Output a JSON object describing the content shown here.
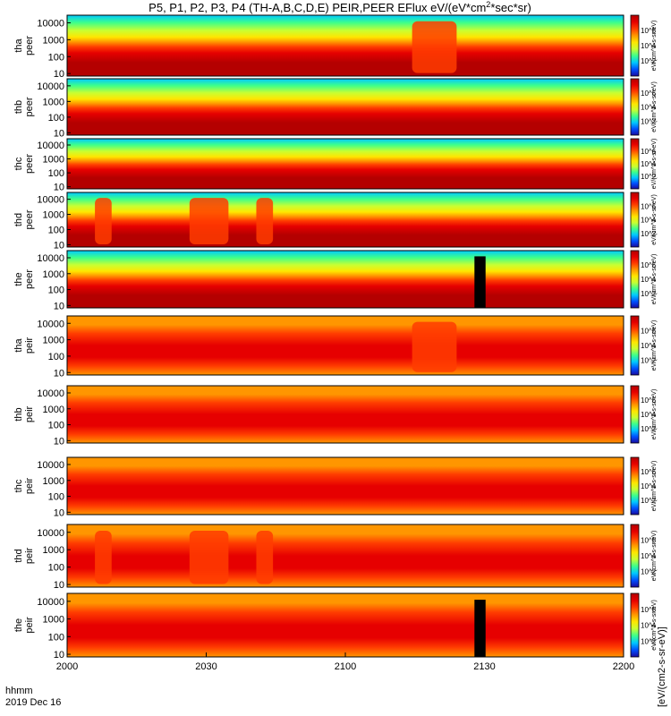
{
  "chart_data": {
    "type": "heatmap",
    "title": "P5, P1, P2, P3, P4 (TH-A,B,C,D,E) PEIR,PEER EFlux eV/(eV*cm",
    "title_sup": "2",
    "title_end": "*sec*sr)",
    "time_label": "hhmm",
    "date_label": "2019 Dec 16",
    "x_ticks": [
      "2000",
      "2030",
      "2100",
      "2130",
      "2200"
    ],
    "y_ticks": [
      "10",
      "100",
      "1000",
      "10000"
    ],
    "colorbar_label": "[eV/(cm2-s-sr-eV)]",
    "colorbar_units_repeated": "eV/(cm^2-s-sr-eV)",
    "panels": [
      {
        "probe": "tha",
        "species": "peer",
        "low_band": true,
        "bursts": [
          [
            0.62,
            0.7
          ]
        ],
        "black_blocks": []
      },
      {
        "probe": "thb",
        "species": "peer",
        "low_band": true,
        "bursts": [],
        "black_blocks": []
      },
      {
        "probe": "thc",
        "species": "peer",
        "low_band": true,
        "bursts": [],
        "black_blocks": []
      },
      {
        "probe": "thd",
        "species": "peer",
        "low_band": true,
        "bursts": [
          [
            0.05,
            0.08
          ],
          [
            0.22,
            0.29
          ],
          [
            0.34,
            0.37
          ]
        ],
        "black_blocks": []
      },
      {
        "probe": "the",
        "species": "peer",
        "low_band": true,
        "bursts": [],
        "black_blocks": [
          [
            0.732,
            0.752
          ]
        ]
      },
      {
        "probe": "tha",
        "species": "peir",
        "low_band": false,
        "bursts": [
          [
            0.62,
            0.7
          ]
        ],
        "black_blocks": []
      },
      {
        "probe": "thb",
        "species": "peir",
        "low_band": false,
        "bursts": [],
        "black_blocks": []
      },
      {
        "probe": "thc",
        "species": "peir",
        "low_band": false,
        "bursts": [],
        "black_blocks": []
      },
      {
        "probe": "thd",
        "species": "peir",
        "low_band": false,
        "bursts": [
          [
            0.05,
            0.08
          ],
          [
            0.22,
            0.29
          ],
          [
            0.34,
            0.37
          ]
        ],
        "black_blocks": []
      },
      {
        "probe": "the",
        "species": "peir",
        "low_band": false,
        "bursts": [],
        "black_blocks": [
          [
            0.732,
            0.752
          ]
        ]
      }
    ],
    "colorscale": [
      "#1a0aa0",
      "#0050ff",
      "#00c8ff",
      "#3cff8c",
      "#c8ff32",
      "#ffe600",
      "#ff9600",
      "#ff3c00",
      "#e60000",
      "#b40000"
    ],
    "colorbar_ticks": [
      "10^2",
      "10^4",
      "10^6"
    ]
  }
}
